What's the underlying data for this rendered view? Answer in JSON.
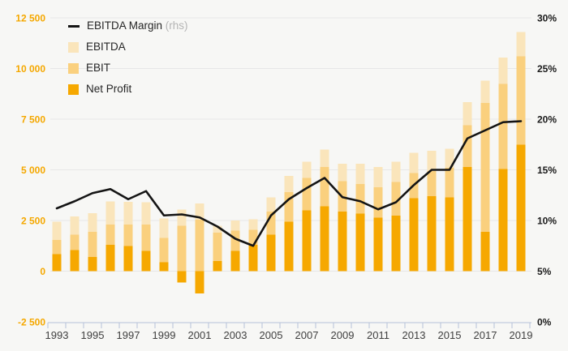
{
  "chart_data": {
    "type": "combo-bar-line",
    "title": "",
    "categories": [
      "1993",
      "1994",
      "1995",
      "1996",
      "1997",
      "1998",
      "1999",
      "2000",
      "2001",
      "2002",
      "2003",
      "2004",
      "2005",
      "2006",
      "2007",
      "2008",
      "2009",
      "2010",
      "2011",
      "2012",
      "2013",
      "2014",
      "2015",
      "2016",
      "2017",
      "2018",
      "2019"
    ],
    "bar_series": [
      {
        "name": "EBITDA",
        "color": "#FAE5BB",
        "values": [
          2450,
          2700,
          2870,
          3450,
          3430,
          3400,
          2600,
          3050,
          3350,
          2250,
          2500,
          2570,
          3650,
          4700,
          5400,
          6000,
          5300,
          5300,
          5150,
          5400,
          5850,
          5950,
          6050,
          8350,
          9400,
          10550,
          11800
        ]
      },
      {
        "name": "EBIT",
        "color": "#FAD07E",
        "values": [
          1550,
          1800,
          1950,
          2300,
          2300,
          2300,
          1650,
          2250,
          2550,
          1900,
          2000,
          2050,
          2950,
          3900,
          4600,
          5150,
          4450,
          4300,
          4150,
          4400,
          4850,
          4950,
          5100,
          7200,
          8300,
          9250,
          10600
        ]
      },
      {
        "name": "Net Profit",
        "color": "#F6A800",
        "values": [
          850,
          1050,
          700,
          1300,
          1250,
          1000,
          450,
          -550,
          -1100,
          500,
          1000,
          1300,
          1800,
          2450,
          3000,
          3200,
          2950,
          2850,
          2650,
          2750,
          3600,
          3700,
          3650,
          5150,
          1950,
          5050,
          6250
        ]
      }
    ],
    "line_series": {
      "name": "EBITDA Margin",
      "rhs_note": "(rhs)",
      "color": "#141414",
      "axis": "right",
      "values": [
        11.2,
        11.9,
        12.7,
        13.1,
        12.1,
        12.9,
        10.5,
        10.6,
        10.3,
        9.4,
        8.2,
        7.5,
        10.5,
        12.1,
        13.2,
        14.2,
        12.3,
        11.9,
        11.1,
        11.8,
        13.5,
        15.0,
        15.0,
        18.1,
        18.9,
        19.7,
        19.8
      ]
    },
    "left_axis": {
      "min": -2500,
      "max": 12500,
      "step": 2500,
      "color": "#F5A800",
      "tick_labels": [
        "12 500",
        "10 000",
        "7 500",
        "5 000",
        "2 500",
        "0",
        "-2 500"
      ]
    },
    "right_axis": {
      "min": 0,
      "max": 30,
      "step": 5,
      "color": "#1A1A1A",
      "tick_labels": [
        "30%",
        "25%",
        "20%",
        "15%",
        "10%",
        "5%",
        "0%"
      ]
    },
    "x_tick_labels": [
      "1993",
      "1995",
      "1997",
      "1999",
      "2001",
      "2003",
      "2005",
      "2007",
      "2009",
      "2011",
      "2013",
      "2015",
      "2017",
      "2019"
    ],
    "grid": true,
    "gridline_color": "#e7e7e7",
    "axis_line_color": "#b6c0d9",
    "x_label_color": "#3f3f3f",
    "background": "#f7f7f5",
    "legend_position": "top-left"
  }
}
